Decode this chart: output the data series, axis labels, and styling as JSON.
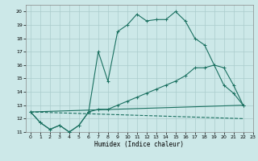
{
  "xlabel": "Humidex (Indice chaleur)",
  "xlim": [
    -0.5,
    23
  ],
  "ylim": [
    11,
    20.5
  ],
  "xticks": [
    0,
    1,
    2,
    3,
    4,
    5,
    6,
    7,
    8,
    9,
    10,
    11,
    12,
    13,
    14,
    15,
    16,
    17,
    18,
    19,
    20,
    21,
    22,
    23
  ],
  "yticks": [
    11,
    12,
    13,
    14,
    15,
    16,
    17,
    18,
    19,
    20
  ],
  "bg_color": "#cce8e8",
  "grid_color": "#aacccc",
  "line_color": "#1a7060",
  "lines": [
    {
      "x": [
        0,
        1,
        2,
        3,
        4,
        5,
        6,
        7,
        8,
        9,
        10,
        11,
        12,
        13,
        14,
        15,
        16,
        17,
        18,
        19,
        20,
        21,
        22
      ],
      "y": [
        12.5,
        11.7,
        11.2,
        11.5,
        11.0,
        11.5,
        12.5,
        17.0,
        14.8,
        18.5,
        19.0,
        19.8,
        19.3,
        19.4,
        19.4,
        20.0,
        19.3,
        18.0,
        17.5,
        16.0,
        14.5,
        13.9,
        13.0
      ],
      "style": "-",
      "marker": "+"
    },
    {
      "x": [
        0,
        1,
        2,
        3,
        4,
        5,
        6,
        7,
        8,
        9,
        10,
        11,
        12,
        13,
        14,
        15,
        16,
        17,
        18,
        19,
        20,
        21,
        22
      ],
      "y": [
        12.5,
        11.7,
        11.2,
        11.5,
        11.0,
        11.5,
        12.5,
        12.7,
        12.7,
        13.0,
        13.3,
        13.6,
        13.9,
        14.2,
        14.5,
        14.8,
        15.2,
        15.8,
        15.8,
        16.0,
        15.8,
        14.5,
        13.0
      ],
      "style": "-",
      "marker": "+"
    },
    {
      "x": [
        0,
        22
      ],
      "y": [
        12.5,
        13.0
      ],
      "style": "-",
      "marker": null
    },
    {
      "x": [
        0,
        22
      ],
      "y": [
        12.5,
        12.0
      ],
      "style": "--",
      "marker": null
    }
  ]
}
